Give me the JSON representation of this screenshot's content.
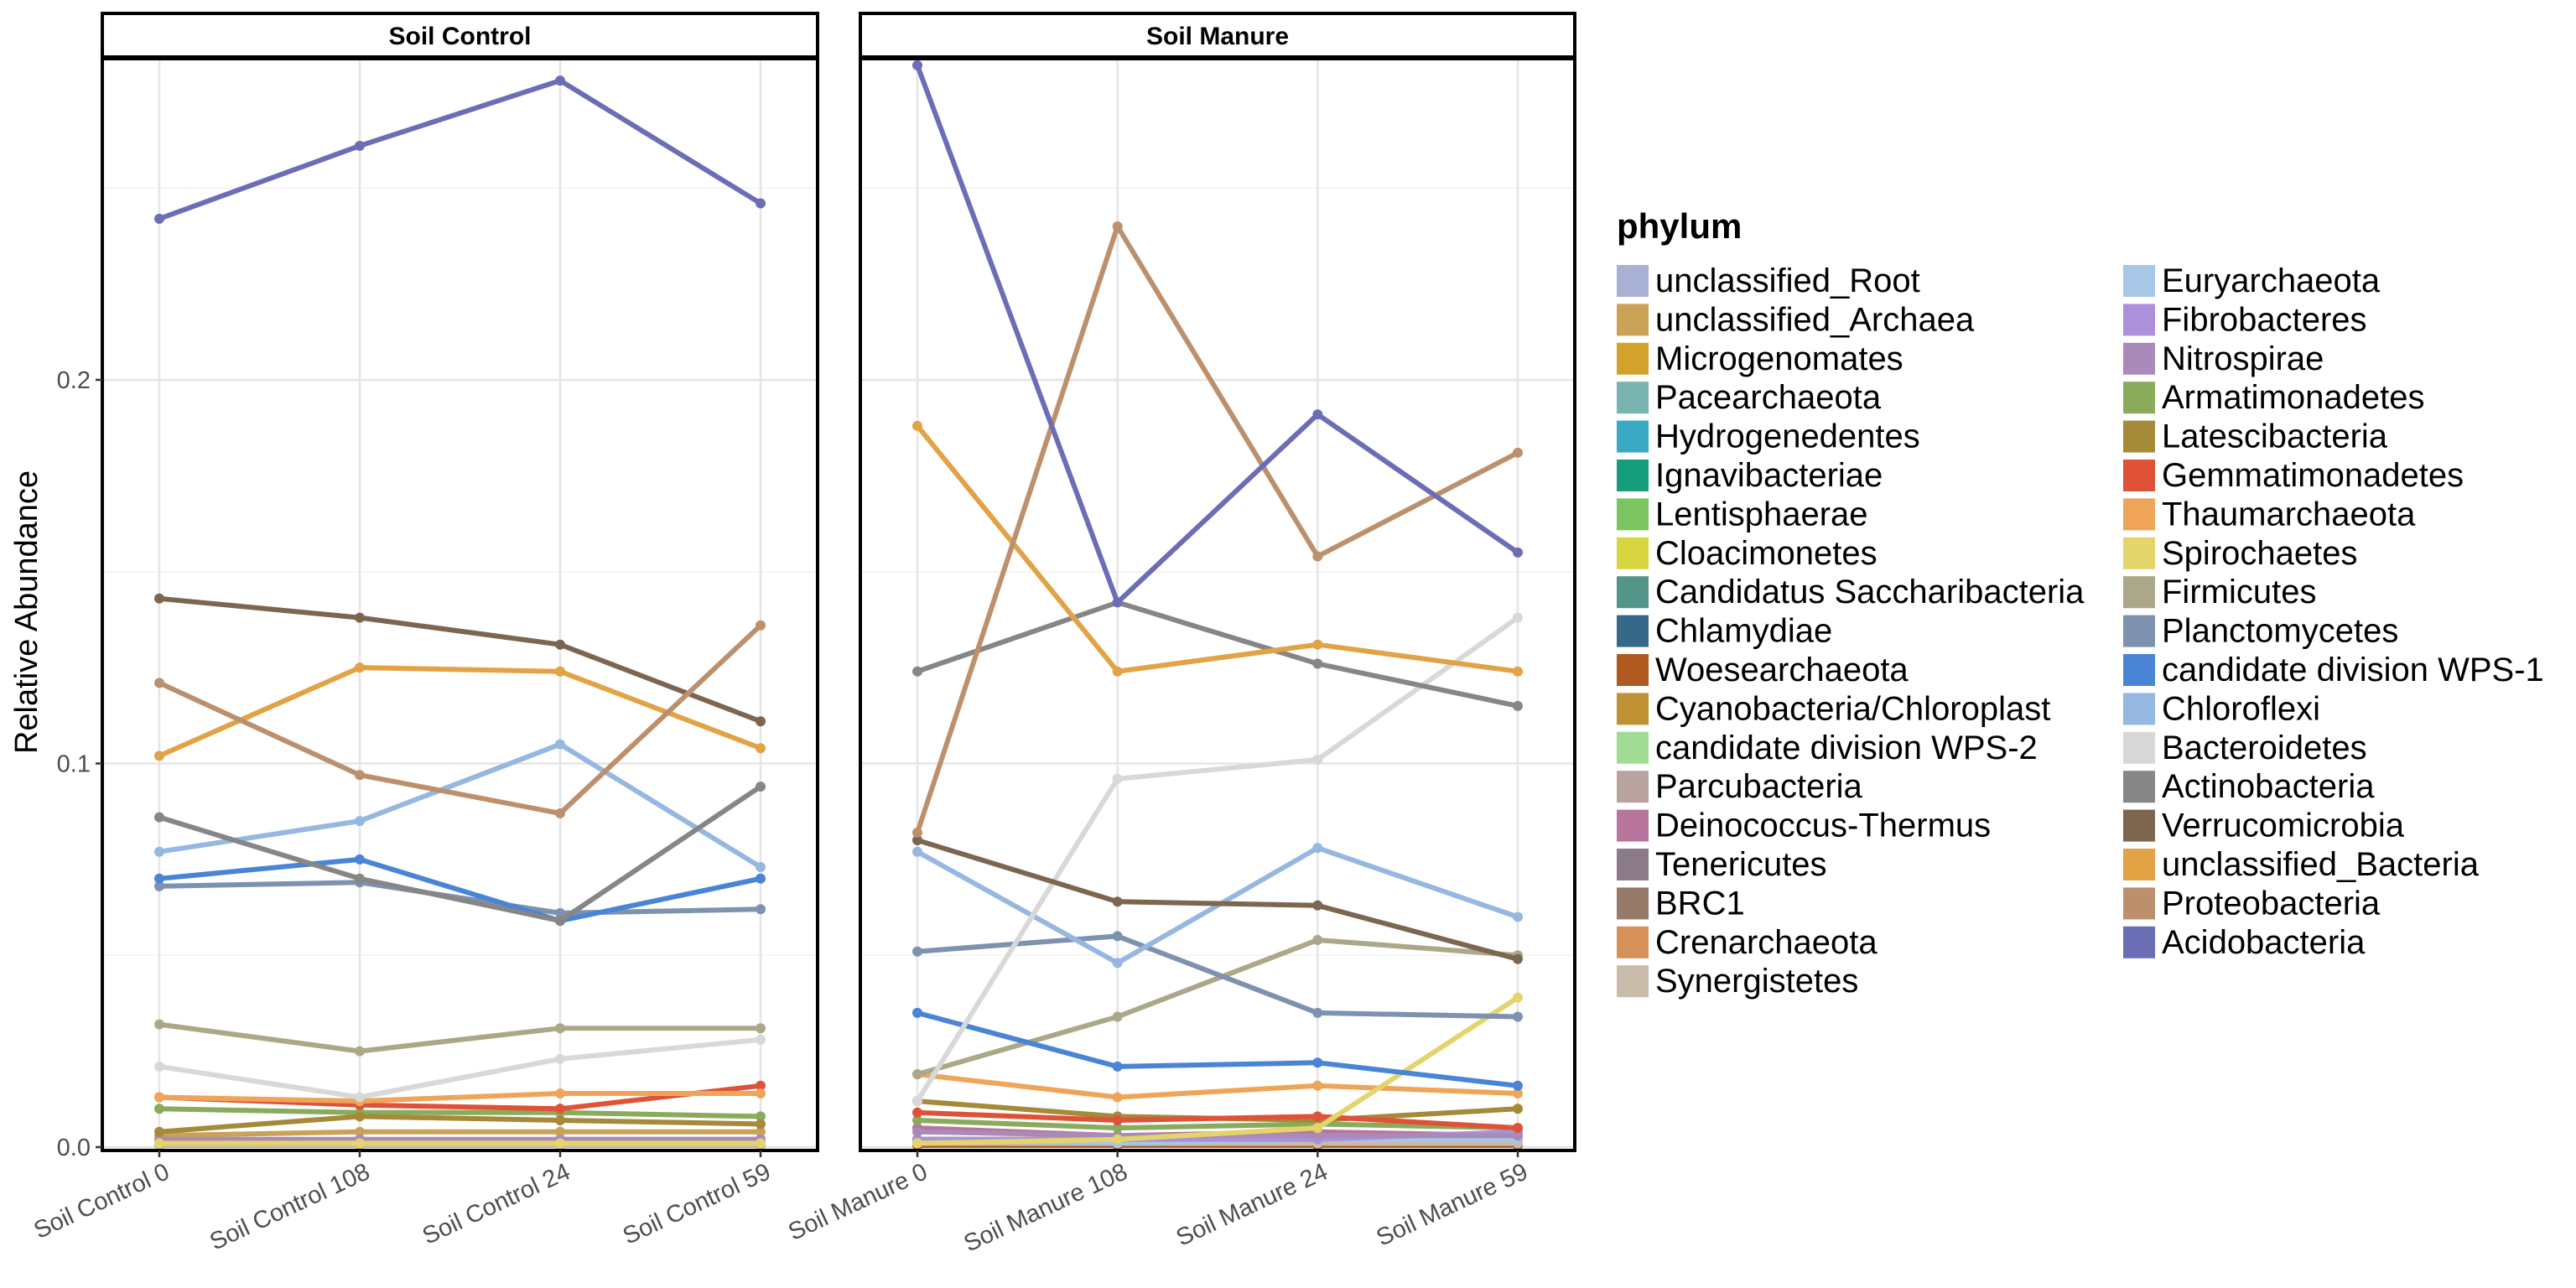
{
  "chart_data": {
    "type": "line",
    "ylabel": "Relative Abundance",
    "ylim": [
      0,
      0.285
    ],
    "y_ticks": [
      0.0,
      0.1,
      0.2
    ],
    "y_tick_labels": [
      "0.0",
      "0.1",
      "0.2"
    ],
    "grid": true,
    "legend": {
      "title": "phylum",
      "placement": "right",
      "columns": 2
    },
    "panels": [
      {
        "strip": "Soil Control",
        "categories": [
          "Soil Control 0",
          "Soil Control 108",
          "Soil Control 24",
          "Soil Control 59"
        ],
        "series": [
          {
            "name": "unclassified_Root",
            "values": [
              0.001,
              0.001,
              0.001,
              0.001
            ]
          },
          {
            "name": "unclassified_Archaea",
            "values": [
              0.003,
              0.004,
              0.004,
              0.004
            ]
          },
          {
            "name": "Microgenomates",
            "values": [
              0.0005,
              0.0005,
              0.0005,
              0.0005
            ]
          },
          {
            "name": "Pacearchaeota",
            "values": [
              0.0005,
              0.0005,
              0.0005,
              0.0005
            ]
          },
          {
            "name": "Hydrogenedentes",
            "values": [
              0.0005,
              0.0005,
              0.0005,
              0.0005
            ]
          },
          {
            "name": "Ignavibacteriae",
            "values": [
              0.0005,
              0.0005,
              0.0005,
              0.0005
            ]
          },
          {
            "name": "Lentisphaerae",
            "values": [
              0.0005,
              0.0005,
              0.0005,
              0.0005
            ]
          },
          {
            "name": "Cloacimonetes",
            "values": [
              0.0005,
              0.0005,
              0.0005,
              0.0005
            ]
          },
          {
            "name": "Candidatus Saccharibacteria",
            "values": [
              0.001,
              0.001,
              0.001,
              0.001
            ]
          },
          {
            "name": "Chlamydiae",
            "values": [
              0.001,
              0.001,
              0.001,
              0.001
            ]
          },
          {
            "name": "Woesearchaeota",
            "values": [
              0.0005,
              0.0005,
              0.0005,
              0.0005
            ]
          },
          {
            "name": "Cyanobacteria/Chloroplast",
            "values": [
              0.001,
              0.001,
              0.001,
              0.001
            ]
          },
          {
            "name": "candidate division WPS-2",
            "values": [
              0.001,
              0.001,
              0.001,
              0.001
            ]
          },
          {
            "name": "Parcubacteria",
            "values": [
              0.001,
              0.001,
              0.001,
              0.001
            ]
          },
          {
            "name": "Deinococcus-Thermus",
            "values": [
              0.001,
              0.002,
              0.001,
              0.001
            ]
          },
          {
            "name": "Tenericutes",
            "values": [
              0.0005,
              0.0005,
              0.0005,
              0.0005
            ]
          },
          {
            "name": "BRC1",
            "values": [
              0.001,
              0.001,
              0.001,
              0.001
            ]
          },
          {
            "name": "Crenarchaeota",
            "values": [
              0.0005,
              0.0005,
              0.0005,
              0.0005
            ]
          },
          {
            "name": "Synergistetes",
            "values": [
              0.0005,
              0.0005,
              0.0005,
              0.0005
            ]
          },
          {
            "name": "Euryarchaeota",
            "values": [
              0.001,
              0.001,
              0.001,
              0.001
            ]
          },
          {
            "name": "Fibrobacteres",
            "values": [
              0.001,
              0.001,
              0.002,
              0.002
            ]
          },
          {
            "name": "Nitrospirae",
            "values": [
              0.002,
              0.002,
              0.002,
              0.002
            ]
          },
          {
            "name": "Armatimonadetes",
            "values": [
              0.01,
              0.009,
              0.009,
              0.008
            ]
          },
          {
            "name": "Latescibacteria",
            "values": [
              0.004,
              0.008,
              0.007,
              0.006
            ]
          },
          {
            "name": "Gemmatimonadetes",
            "values": [
              0.013,
              0.011,
              0.01,
              0.016
            ]
          },
          {
            "name": "Thaumarchaeota",
            "values": [
              0.013,
              0.012,
              0.014,
              0.014
            ]
          },
          {
            "name": "Spirochaetes",
            "values": [
              0.001,
              0.001,
              0.001,
              0.001
            ]
          },
          {
            "name": "Firmicutes",
            "values": [
              0.032,
              0.025,
              0.031,
              0.031
            ]
          },
          {
            "name": "Planctomycetes",
            "values": [
              0.068,
              0.069,
              0.061,
              0.062
            ]
          },
          {
            "name": "candidate division WPS-1",
            "values": [
              0.07,
              0.075,
              0.059,
              0.07
            ]
          },
          {
            "name": "Chloroflexi",
            "values": [
              0.077,
              0.085,
              0.105,
              0.073
            ]
          },
          {
            "name": "Bacteroidetes",
            "values": [
              0.021,
              0.013,
              0.023,
              0.028
            ]
          },
          {
            "name": "Actinobacteria",
            "values": [
              0.086,
              0.07,
              0.059,
              0.094
            ]
          },
          {
            "name": "Verrucomicrobia",
            "values": [
              0.143,
              0.138,
              0.131,
              0.111
            ]
          },
          {
            "name": "unclassified_Bacteria",
            "values": [
              0.102,
              0.125,
              0.124,
              0.104
            ]
          },
          {
            "name": "Proteobacteria",
            "values": [
              0.121,
              0.097,
              0.087,
              0.136
            ]
          },
          {
            "name": "Acidobacteria",
            "values": [
              0.242,
              0.261,
              0.278,
              0.246
            ]
          }
        ]
      },
      {
        "strip": "Soil Manure",
        "categories": [
          "Soil Manure 0",
          "Soil Manure 108",
          "Soil Manure 24",
          "Soil Manure 59"
        ],
        "series": [
          {
            "name": "unclassified_Root",
            "values": [
              0.002,
              0.002,
              0.002,
              0.002
            ]
          },
          {
            "name": "unclassified_Archaea",
            "values": [
              0.002,
              0.002,
              0.002,
              0.002
            ]
          },
          {
            "name": "Microgenomates",
            "values": [
              0.0005,
              0.0005,
              0.0005,
              0.0005
            ]
          },
          {
            "name": "Pacearchaeota",
            "values": [
              0.0005,
              0.0005,
              0.0005,
              0.0005
            ]
          },
          {
            "name": "Hydrogenedentes",
            "values": [
              0.001,
              0.001,
              0.001,
              0.001
            ]
          },
          {
            "name": "Ignavibacteriae",
            "values": [
              0.001,
              0.001,
              0.001,
              0.001
            ]
          },
          {
            "name": "Lentisphaerae",
            "values": [
              0.0005,
              0.0005,
              0.0005,
              0.0005
            ]
          },
          {
            "name": "Cloacimonetes",
            "values": [
              0.0005,
              0.0005,
              0.0005,
              0.0005
            ]
          },
          {
            "name": "Candidatus Saccharibacteria",
            "values": [
              0.002,
              0.002,
              0.002,
              0.002
            ]
          },
          {
            "name": "Chlamydiae",
            "values": [
              0.001,
              0.001,
              0.001,
              0.001
            ]
          },
          {
            "name": "Woesearchaeota",
            "values": [
              0.0005,
              0.0005,
              0.0005,
              0.0005
            ]
          },
          {
            "name": "Cyanobacteria/Chloroplast",
            "values": [
              0.002,
              0.002,
              0.002,
              0.002
            ]
          },
          {
            "name": "candidate division WPS-2",
            "values": [
              0.001,
              0.001,
              0.001,
              0.001
            ]
          },
          {
            "name": "Parcubacteria",
            "values": [
              0.002,
              0.002,
              0.002,
              0.002
            ]
          },
          {
            "name": "Deinococcus-Thermus",
            "values": [
              0.005,
              0.003,
              0.004,
              0.003
            ]
          },
          {
            "name": "Tenericutes",
            "values": [
              0.001,
              0.001,
              0.001,
              0.001
            ]
          },
          {
            "name": "BRC1",
            "values": [
              0.001,
              0.001,
              0.001,
              0.001
            ]
          },
          {
            "name": "Crenarchaeota",
            "values": [
              0.001,
              0.001,
              0.001,
              0.001
            ]
          },
          {
            "name": "Synergistetes",
            "values": [
              0.001,
              0.001,
              0.001,
              0.001
            ]
          },
          {
            "name": "Euryarchaeota",
            "values": [
              0.002,
              0.001,
              0.002,
              0.002
            ]
          },
          {
            "name": "Fibrobacteres",
            "values": [
              0.002,
              0.002,
              0.002,
              0.004
            ]
          },
          {
            "name": "Nitrospirae",
            "values": [
              0.004,
              0.003,
              0.003,
              0.003
            ]
          },
          {
            "name": "Armatimonadetes",
            "values": [
              0.007,
              0.005,
              0.006,
              0.005
            ]
          },
          {
            "name": "Latescibacteria",
            "values": [
              0.012,
              0.008,
              0.007,
              0.01
            ]
          },
          {
            "name": "Gemmatimonadetes",
            "values": [
              0.009,
              0.007,
              0.008,
              0.005
            ]
          },
          {
            "name": "Thaumarchaeota",
            "values": [
              0.019,
              0.013,
              0.016,
              0.014
            ]
          },
          {
            "name": "Spirochaetes",
            "values": [
              0.001,
              0.002,
              0.005,
              0.039
            ]
          },
          {
            "name": "Firmicutes",
            "values": [
              0.019,
              0.034,
              0.054,
              0.05
            ]
          },
          {
            "name": "Planctomycetes",
            "values": [
              0.051,
              0.055,
              0.035,
              0.034
            ]
          },
          {
            "name": "candidate division WPS-1",
            "values": [
              0.035,
              0.021,
              0.022,
              0.016
            ]
          },
          {
            "name": "Chloroflexi",
            "values": [
              0.077,
              0.048,
              0.078,
              0.06
            ]
          },
          {
            "name": "Bacteroidetes",
            "values": [
              0.012,
              0.096,
              0.101,
              0.138
            ]
          },
          {
            "name": "Actinobacteria",
            "values": [
              0.124,
              0.142,
              0.126,
              0.115
            ]
          },
          {
            "name": "Verrucomicrobia",
            "values": [
              0.08,
              0.064,
              0.063,
              0.049
            ]
          },
          {
            "name": "unclassified_Bacteria",
            "values": [
              0.188,
              0.124,
              0.131,
              0.124
            ]
          },
          {
            "name": "Proteobacteria",
            "values": [
              0.082,
              0.24,
              0.154,
              0.181
            ]
          },
          {
            "name": "Acidobacteria",
            "values": [
              0.282,
              0.142,
              0.191,
              0.155
            ]
          }
        ]
      }
    ]
  },
  "phyla": [
    {
      "name": "unclassified_Root",
      "color": "#a8b0d4"
    },
    {
      "name": "unclassified_Archaea",
      "color": "#c9a258"
    },
    {
      "name": "Microgenomates",
      "color": "#d2a22c"
    },
    {
      "name": "Pacearchaeota",
      "color": "#79b4b0"
    },
    {
      "name": "Hydrogenedentes",
      "color": "#39a9c4"
    },
    {
      "name": "Ignavibacteriae",
      "color": "#169e7c"
    },
    {
      "name": "Lentisphaerae",
      "color": "#7cc460"
    },
    {
      "name": "Cloacimonetes",
      "color": "#d7d63e"
    },
    {
      "name": "Candidatus Saccharibacteria",
      "color": "#54958a"
    },
    {
      "name": "Chlamydiae",
      "color": "#36688a"
    },
    {
      "name": "Woesearchaeota",
      "color": "#ae5a20"
    },
    {
      "name": "Cyanobacteria/Chloroplast",
      "color": "#bf9234"
    },
    {
      "name": "candidate division WPS-2",
      "color": "#a2dc94"
    },
    {
      "name": "Parcubacteria",
      "color": "#b9a39f"
    },
    {
      "name": "Deinococcus-Thermus",
      "color": "#b8769c"
    },
    {
      "name": "Tenericutes",
      "color": "#8d7a89"
    },
    {
      "name": "BRC1",
      "color": "#957a6a"
    },
    {
      "name": "Crenarchaeota",
      "color": "#d69159"
    },
    {
      "name": "Synergistetes",
      "color": "#c8bbaa"
    },
    {
      "name": "Euryarchaeota",
      "color": "#a8c6e6"
    },
    {
      "name": "Fibrobacteres",
      "color": "#ac91da"
    },
    {
      "name": "Nitrospirae",
      "color": "#a98ab8"
    },
    {
      "name": "Armatimonadetes",
      "color": "#8aab5c"
    },
    {
      "name": "Latescibacteria",
      "color": "#a58a3a"
    },
    {
      "name": "Gemmatimonadetes",
      "color": "#df5238"
    },
    {
      "name": "Thaumarchaeota",
      "color": "#eea55a"
    },
    {
      "name": "Spirochaetes",
      "color": "#e3d46c"
    },
    {
      "name": "Firmicutes",
      "color": "#aaa888"
    },
    {
      "name": "Planctomycetes",
      "color": "#7e92b0"
    },
    {
      "name": "candidate division WPS-1",
      "color": "#4a84d4"
    },
    {
      "name": "Chloroflexi",
      "color": "#96b8e0"
    },
    {
      "name": "Bacteroidetes",
      "color": "#d8d8d8"
    },
    {
      "name": "Actinobacteria",
      "color": "#868686"
    },
    {
      "name": "Verrucomicrobia",
      "color": "#7c6650"
    },
    {
      "name": "unclassified_Bacteria",
      "color": "#e2a246"
    },
    {
      "name": "Proteobacteria",
      "color": "#bc906c"
    },
    {
      "name": "Acidobacteria",
      "color": "#6b6db5"
    }
  ]
}
